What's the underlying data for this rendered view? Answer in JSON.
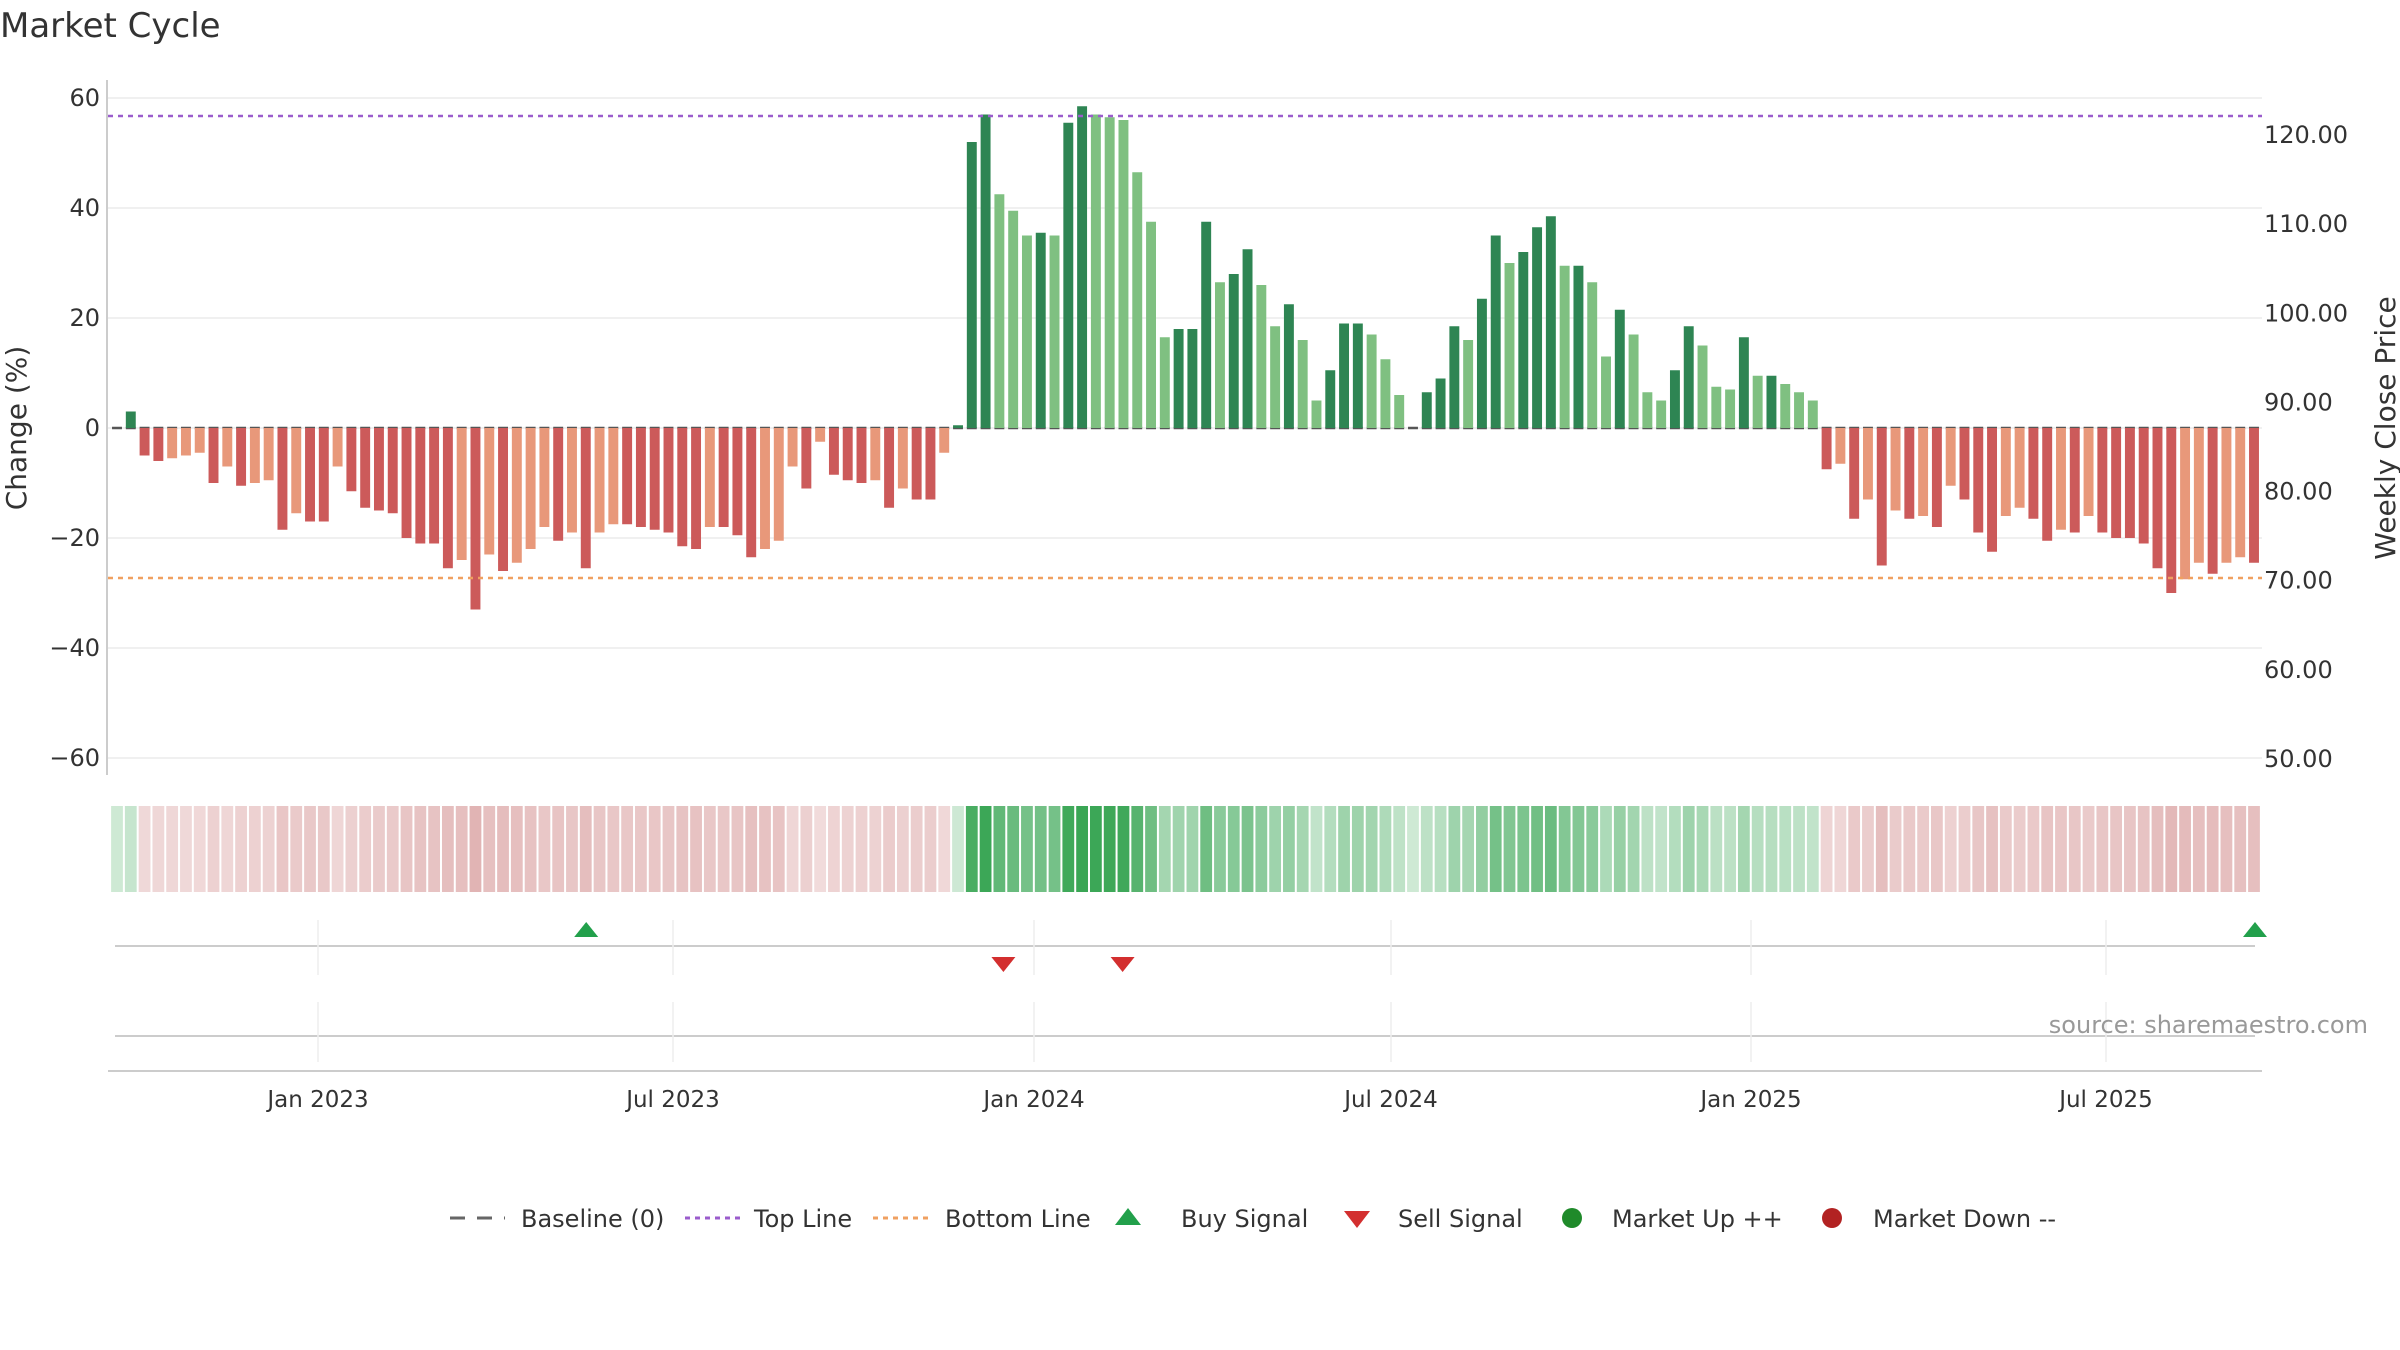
{
  "chart_data": {
    "type": "bar",
    "title": "Market Cycle",
    "ylabel": "Change (%)",
    "y2label": "Weekly Close Price",
    "ylim": [
      -60,
      60
    ],
    "y2lim": [
      50,
      120
    ],
    "yticks": [
      "60",
      "40",
      "20",
      "0",
      "−20",
      "−40",
      "−60"
    ],
    "y2ticks": [
      "120.00",
      "110.00",
      "100.00",
      "90.00",
      "80.00",
      "70.00",
      "60.00",
      "50.00"
    ],
    "xlabels": [
      "Jan 2023",
      "Jul 2023",
      "Jan 2024",
      "Jul 2024",
      "Jan 2025",
      "Jul 2025"
    ],
    "grid": true,
    "legend_position": "bottom",
    "top_line": 57,
    "bottom_line": -27,
    "series": [
      {
        "name": "Change (%)",
        "values": [
          0,
          3,
          -5,
          -6,
          -5.5,
          -5,
          -4.5,
          -10,
          -7,
          -10.5,
          -10,
          -9.5,
          -18.5,
          -15.5,
          -17,
          -17,
          -7,
          -11.5,
          -14.5,
          -15,
          -15.5,
          -20,
          -21,
          -21,
          -25.5,
          -24,
          -33,
          -23,
          -26,
          -24.5,
          -22,
          -18,
          -20.5,
          -19,
          -25.5,
          -19,
          -17.5,
          -17.5,
          -18,
          -18.5,
          -19,
          -21.5,
          -22,
          -18,
          -18,
          -19.5,
          -23.5,
          -22,
          -20.5,
          -7,
          -11,
          -2.5,
          -8.5,
          -9.5,
          -10,
          -9.5,
          -14.5,
          -11,
          -13,
          -13,
          -4.5,
          0.5,
          52,
          57,
          42.5,
          39.5,
          35,
          35.5,
          35,
          55.5,
          58.5,
          57,
          56.5,
          56,
          46.5,
          37.5,
          16.5,
          18,
          18,
          37.5,
          26.5,
          28,
          32.5,
          26,
          18.5,
          22.5,
          16,
          5,
          10.5,
          19,
          19,
          17,
          12.5,
          6,
          0,
          6.5,
          9,
          18.5,
          16,
          23.5,
          35,
          30,
          32,
          36.5,
          38.5,
          29.5,
          29.5,
          26.5,
          13,
          21.5,
          17,
          6.5,
          5,
          10.5,
          18.5,
          15,
          7.5,
          7,
          16.5,
          9.5,
          9.5,
          8,
          6.5,
          5,
          -7.5,
          -6.5,
          -16.5,
          -13,
          -25,
          -15,
          -16.5,
          -16,
          -18,
          -10.5,
          -13,
          -19,
          -22.5,
          -16,
          -14.5,
          -16.5,
          -20.5,
          -18.5,
          -19,
          -16,
          -19,
          -20,
          -20,
          -21,
          -25.5,
          -30,
          -27.5,
          -24.5,
          -26.5,
          -24.5,
          -23.5,
          -24.5
        ]
      }
    ],
    "signals": {
      "buy": [
        "May 2023",
        "Sep 2025"
      ],
      "sell": [
        "Dec 2023",
        "Feb 2024"
      ]
    },
    "colors": {
      "up_strong": "#2e8553",
      "up_light": "#7fc081",
      "down_strong": "#cc5a5a",
      "down_light": "#e8987a",
      "top_line": "#9a5ccc",
      "bottom_line": "#f0a060",
      "baseline": "#555555",
      "buy": "#22a04b",
      "sell": "#d32f2f",
      "market_up": "#1f8a2a",
      "market_down": "#b22222"
    }
  },
  "source_text": "source: sharemaestro.com",
  "legend": {
    "baseline": "Baseline (0)",
    "top_line": "Top Line",
    "bottom_line": "Bottom Line",
    "buy": "Buy Signal",
    "sell": "Sell Signal",
    "market_up": "Market Up ++",
    "market_down": "Market Down --"
  }
}
